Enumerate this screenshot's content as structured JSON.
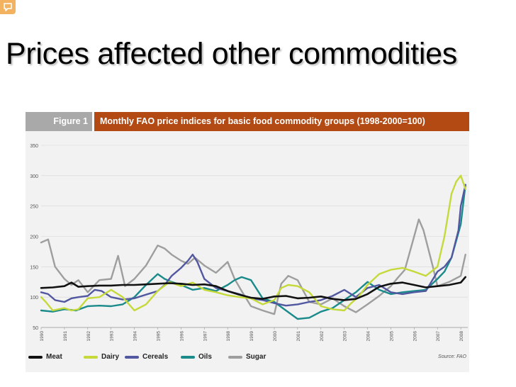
{
  "slide": {
    "title": "Prices affected other commodities",
    "corner_icon": "speech-bubble-icon"
  },
  "figure": {
    "label": "Figure 1",
    "caption": "Monthly FAO price indices for basic food commodity groups (1998-2000=100)",
    "source": "Source: FAO",
    "header_colors": {
      "label_bg": "#a9a9a9",
      "caption_bg": "#b34a14",
      "panel_bg": "#f2f2f2"
    }
  },
  "chart_data": {
    "type": "line",
    "title": "Monthly FAO price indices for basic food commodity groups (1998-2000=100)",
    "xlabel": "",
    "ylabel": "",
    "ylim": [
      50,
      350
    ],
    "yticks": [
      50,
      100,
      150,
      200,
      250,
      300,
      350
    ],
    "xlim": [
      1990,
      2008.3
    ],
    "xtick_labels": [
      "1990",
      "1991",
      "1992",
      "1993",
      "1994",
      "1995",
      "1996",
      "1997",
      "1998",
      "1999",
      "2000",
      "2001",
      "2002",
      "2003",
      "2004",
      "2005",
      "2006",
      "2007",
      "2008"
    ],
    "grid": true,
    "legend": "bottom",
    "series": [
      {
        "name": "Meat",
        "color": "#111111",
        "x": [
          1990,
          1990.5,
          1991,
          1991.3,
          1991.6,
          1992,
          1992.5,
          1993,
          1993.5,
          1994,
          1994.5,
          1995,
          1995.5,
          1996,
          1996.5,
          1997,
          1997.5,
          1998,
          1998.5,
          1999,
          1999.5,
          2000,
          2000.5,
          2001,
          2001.5,
          2002,
          2002.5,
          2003,
          2003.5,
          2004,
          2004.5,
          2005,
          2005.5,
          2006,
          2006.5,
          2007,
          2007.5,
          2008,
          2008.2
        ],
        "y": [
          115,
          116,
          118,
          124,
          117,
          118,
          119,
          119,
          120,
          120,
          121,
          122,
          123,
          122,
          120,
          121,
          118,
          110,
          104,
          99,
          97,
          101,
          102,
          98,
          99,
          101,
          97,
          95,
          97,
          105,
          117,
          122,
          124,
          120,
          116,
          118,
          120,
          124,
          133
        ]
      },
      {
        "name": "Dairy",
        "color": "#c6d93a",
        "x": [
          1990,
          1990.2,
          1990.5,
          1991,
          1991.3,
          1991.6,
          1992,
          1992.5,
          1993,
          1993.5,
          1994,
          1994.5,
          1995,
          1995.5,
          1996,
          1996.5,
          1997,
          1997.5,
          1998,
          1998.5,
          1999,
          1999.5,
          2000,
          2000.3,
          2000.6,
          2001,
          2001.5,
          2002,
          2002.5,
          2003,
          2003.3,
          2003.6,
          2004,
          2004.5,
          2005,
          2005.5,
          2006,
          2006.5,
          2007,
          2007.3,
          2007.6,
          2007.8,
          2008,
          2008.2
        ],
        "y": [
          100,
          92,
          78,
          82,
          78,
          80,
          98,
          100,
          112,
          100,
          78,
          88,
          110,
          125,
          118,
          124,
          112,
          108,
          103,
          100,
          98,
          88,
          95,
          115,
          120,
          118,
          108,
          85,
          80,
          78,
          90,
          100,
          120,
          138,
          145,
          148,
          142,
          135,
          150,
          200,
          270,
          290,
          300,
          278
        ]
      },
      {
        "name": "Cereals",
        "color": "#5158a0",
        "x": [
          1990,
          1990.3,
          1990.6,
          1991,
          1991.3,
          1991.6,
          1992,
          1992.3,
          1992.6,
          1993,
          1993.5,
          1994,
          1994.5,
          1995,
          1995.3,
          1995.6,
          1996,
          1996.3,
          1996.5,
          1996.7,
          1997,
          1997.5,
          1998,
          1998.5,
          1999,
          1999.5,
          2000,
          2000.5,
          2001,
          2001.5,
          2002,
          2002.5,
          2003,
          2003.5,
          2004,
          2004.5,
          2005,
          2005.5,
          2006,
          2006.5,
          2007,
          2007.3,
          2007.6,
          2007.9,
          2008,
          2008.2
        ],
        "y": [
          108,
          105,
          95,
          92,
          98,
          100,
          102,
          112,
          110,
          100,
          96,
          98,
          104,
          110,
          120,
          135,
          148,
          160,
          170,
          158,
          130,
          115,
          110,
          105,
          98,
          95,
          90,
          86,
          88,
          92,
          95,
          102,
          112,
          100,
          115,
          120,
          108,
          105,
          108,
          110,
          142,
          150,
          165,
          210,
          250,
          285
        ]
      },
      {
        "name": "Oils",
        "color": "#1a8a8a",
        "x": [
          1990,
          1990.5,
          1991,
          1991.5,
          1992,
          1992.5,
          1993,
          1993.5,
          1994,
          1994.5,
          1995,
          1995.3,
          1995.6,
          1996,
          1996.5,
          1997,
          1997.5,
          1998,
          1998.3,
          1998.6,
          1999,
          1999.5,
          2000,
          2000.5,
          2001,
          2001.5,
          2002,
          2002.5,
          2003,
          2003.5,
          2004,
          2004.5,
          2005,
          2005.5,
          2006,
          2006.5,
          2007,
          2007.3,
          2007.6,
          2008,
          2008.2
        ],
        "y": [
          78,
          76,
          80,
          78,
          85,
          86,
          85,
          88,
          100,
          120,
          138,
          130,
          125,
          120,
          112,
          115,
          110,
          120,
          128,
          133,
          128,
          98,
          92,
          78,
          64,
          66,
          76,
          82,
          95,
          108,
          125,
          112,
          105,
          108,
          110,
          112,
          130,
          142,
          165,
          220,
          285
        ]
      },
      {
        "name": "Sugar",
        "color": "#9e9e9e",
        "x": [
          1990,
          1990.3,
          1990.6,
          1991,
          1991.3,
          1991.6,
          1992,
          1992.5,
          1993,
          1993.3,
          1993.6,
          1994,
          1994.5,
          1995,
          1995.3,
          1995.6,
          1996,
          1996.3,
          1996.6,
          1997,
          1997.5,
          1998,
          1998.3,
          1998.6,
          1999,
          1999.5,
          2000,
          2000.3,
          2000.6,
          2001,
          2001.5,
          2002,
          2002.5,
          2003,
          2003.5,
          2004,
          2004.5,
          2005,
          2005.3,
          2005.6,
          2006,
          2006.2,
          2006.4,
          2006.6,
          2006.8,
          2007,
          2007.5,
          2008,
          2008.2
        ],
        "y": [
          190,
          195,
          150,
          130,
          120,
          128,
          108,
          128,
          130,
          168,
          118,
          130,
          152,
          185,
          180,
          170,
          160,
          155,
          165,
          152,
          140,
          158,
          130,
          110,
          85,
          78,
          72,
          122,
          135,
          128,
          92,
          88,
          98,
          85,
          75,
          88,
          102,
          118,
          132,
          145,
          200,
          228,
          210,
          180,
          150,
          118,
          125,
          135,
          170
        ]
      }
    ]
  }
}
